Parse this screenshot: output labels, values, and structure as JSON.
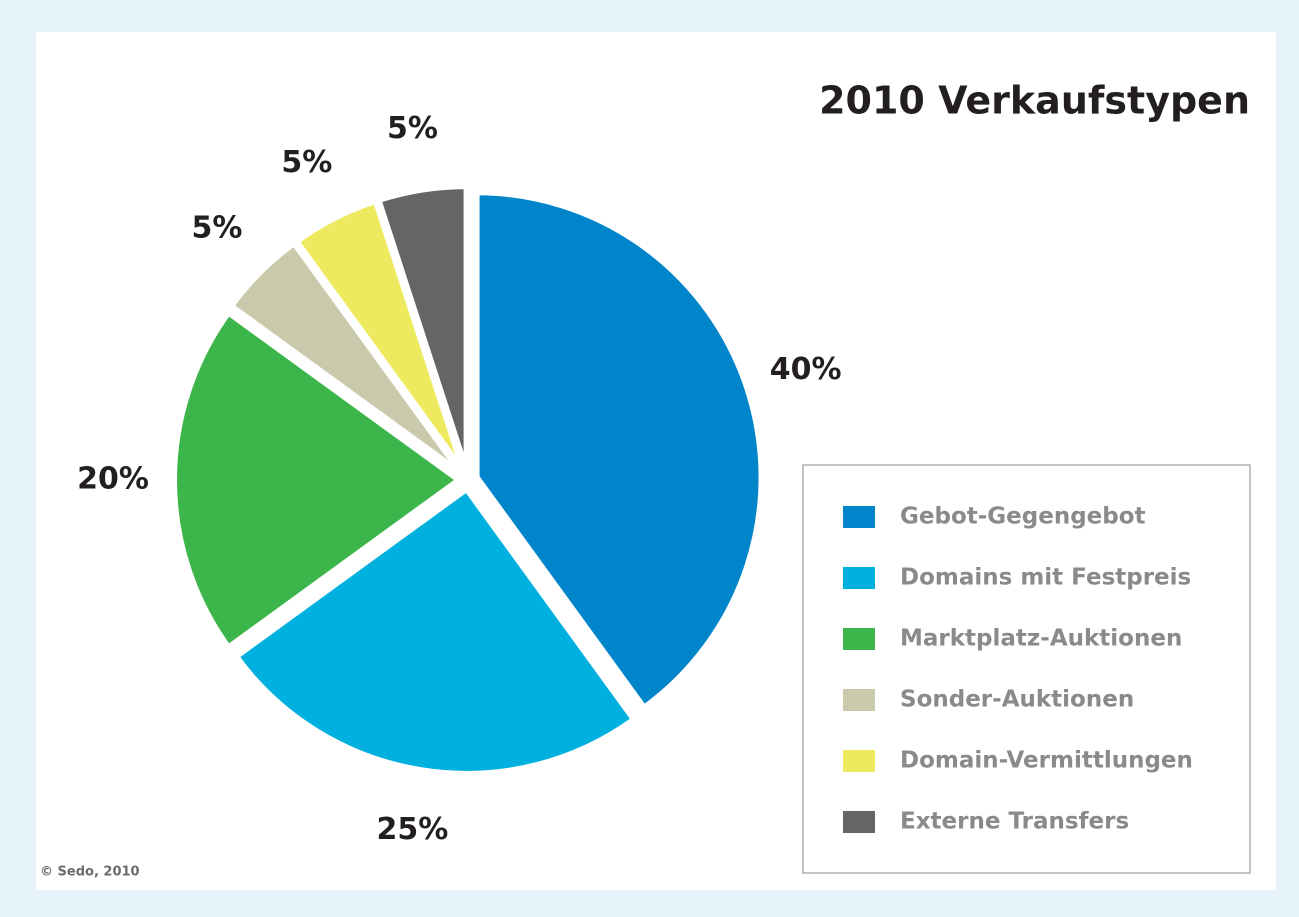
{
  "chart_data": {
    "type": "pie",
    "title": "2010 Verkaufstypen",
    "categories": [
      "Gebot-Gegengebot",
      "Domains mit Festpreis",
      "Marktplatz-Auktionen",
      "Sonder-Auktionen",
      "Domain-Vermittlungen",
      "Externe Transfers"
    ],
    "values": [
      40,
      25,
      20,
      5,
      5,
      5
    ],
    "value_labels": [
      "40%",
      "25%",
      "20%",
      "5%",
      "5%",
      "5%"
    ],
    "colors": [
      "#0085ca",
      "#00b1e0",
      "#3cb54a",
      "#cbc9ab",
      "#eeea5f",
      "#646665"
    ],
    "legend": "right",
    "source": "© Sedo, 2010"
  }
}
